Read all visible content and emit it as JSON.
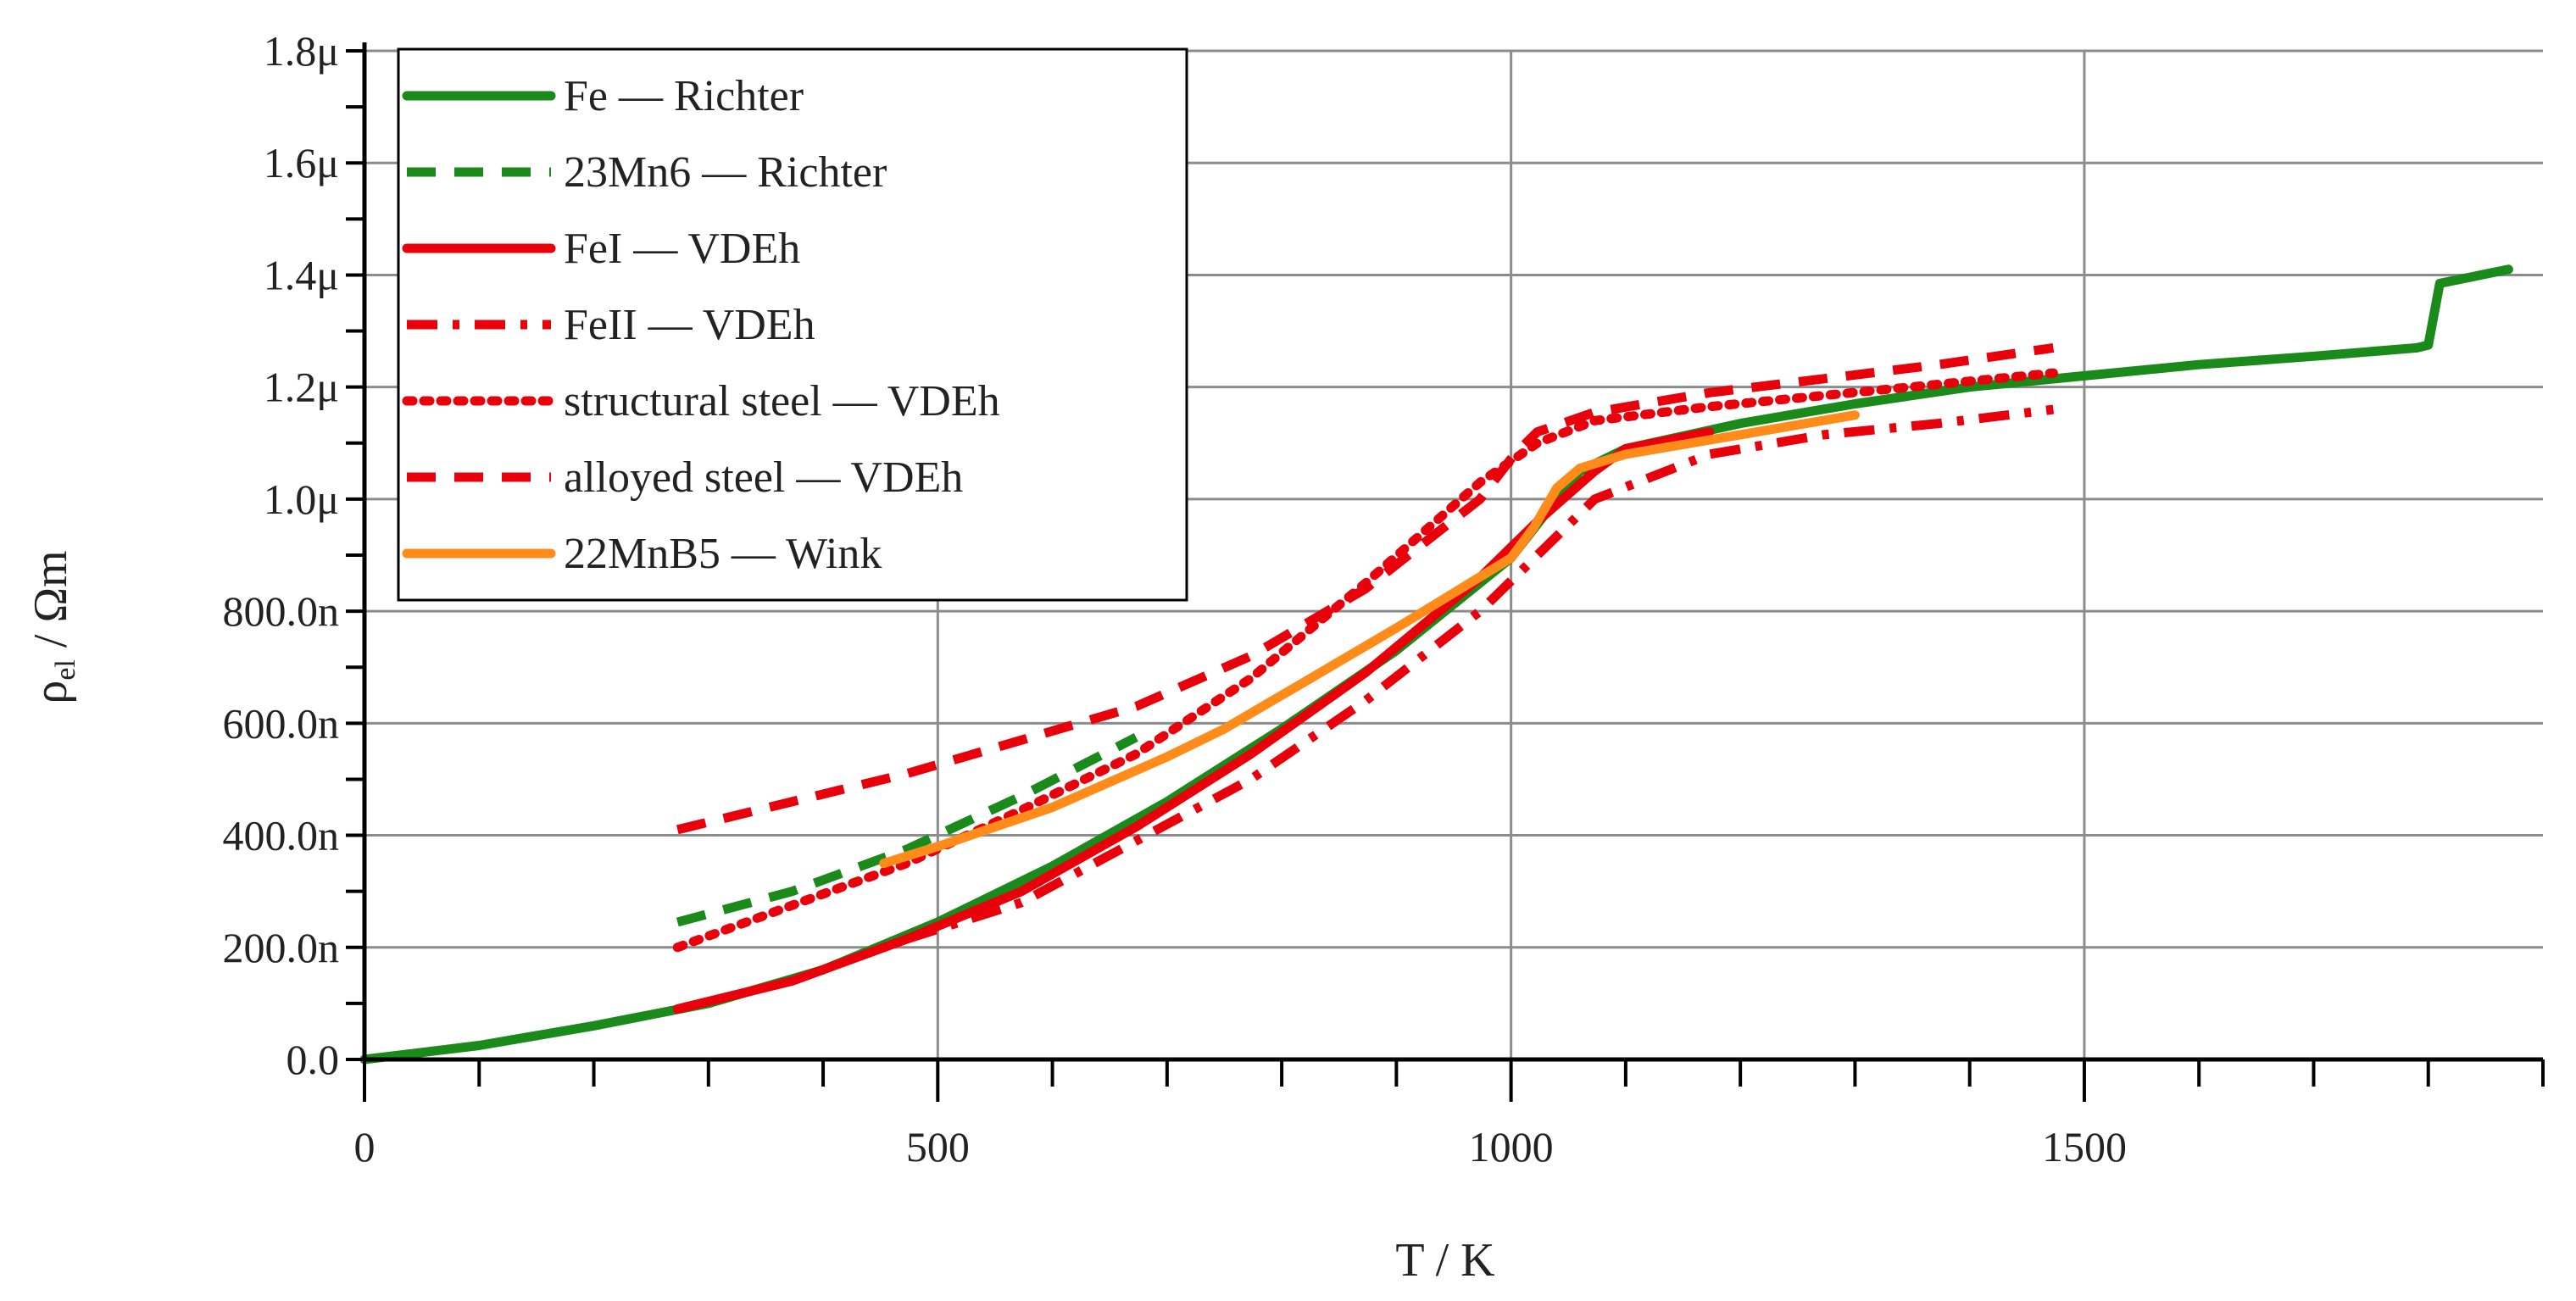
{
  "chart_data": {
    "type": "line",
    "title": "",
    "xlabel": "T / K",
    "ylabel_main": "ρ",
    "ylabel_sub": "el",
    "ylabel_unit": " / Ωm",
    "xlim": [
      0,
      1900
    ],
    "ylim": [
      0,
      1.8
    ],
    "x_ticks": [
      {
        "value": 0,
        "label": "0"
      },
      {
        "value": 500,
        "label": "500"
      },
      {
        "value": 1000,
        "label": "1000"
      },
      {
        "value": 1500,
        "label": "1500"
      }
    ],
    "y_ticks": [
      {
        "value": 0.0,
        "label": "0.0"
      },
      {
        "value": 0.2,
        "label": "200.0n"
      },
      {
        "value": 0.4,
        "label": "400.0n"
      },
      {
        "value": 0.6,
        "label": "600.0n"
      },
      {
        "value": 0.8,
        "label": "800.0n"
      },
      {
        "value": 1.0,
        "label": "1.0μ"
      },
      {
        "value": 1.2,
        "label": "1.2μ"
      },
      {
        "value": 1.4,
        "label": "1.4μ"
      },
      {
        "value": 1.6,
        "label": "1.6μ"
      },
      {
        "value": 1.8,
        "label": "1.8μ"
      }
    ],
    "y_units": "μΩm",
    "grid": true,
    "legend_position": "top-left",
    "series": [
      {
        "name": "Fe — Richter",
        "color": "#1a8a1a",
        "dash": "solid",
        "x": [
          0,
          100,
          200,
          300,
          400,
          500,
          600,
          700,
          800,
          900,
          1000,
          1040,
          1060,
          1100,
          1200,
          1300,
          1400,
          1500,
          1600,
          1700,
          1790,
          1800,
          1810,
          1870
        ],
        "y": [
          0.0,
          0.025,
          0.06,
          0.1,
          0.16,
          0.245,
          0.345,
          0.46,
          0.59,
          0.73,
          0.895,
          1.0,
          1.05,
          1.09,
          1.135,
          1.17,
          1.2,
          1.22,
          1.24,
          1.255,
          1.27,
          1.275,
          1.385,
          1.41
        ]
      },
      {
        "name": "23Mn6 — Richter",
        "color": "#1a8a1a",
        "dash": "dash",
        "x": [
          273,
          373,
          473,
          573,
          673
        ],
        "y": [
          0.245,
          0.3,
          0.375,
          0.47,
          0.575
        ]
      },
      {
        "name": "FeI — VDEh",
        "color": "#e8000b",
        "dash": "solid",
        "x": [
          273,
          373,
          473,
          573,
          673,
          773,
          873,
          973,
          1023,
          1073,
          1100,
          1173
        ],
        "y": [
          0.09,
          0.14,
          0.215,
          0.3,
          0.415,
          0.545,
          0.69,
          0.86,
          0.96,
          1.05,
          1.09,
          1.12
        ]
      },
      {
        "name": "FeII — VDEh",
        "color": "#e8000b",
        "dash": "dashdot",
        "x": [
          473,
          573,
          673,
          773,
          873,
          973,
          1073,
          1173,
          1273,
          1373,
          1473
        ],
        "y": [
          0.215,
          0.28,
          0.39,
          0.5,
          0.64,
          0.8,
          1.0,
          1.08,
          1.115,
          1.135,
          1.16
        ]
      },
      {
        "name": "structural steel — VDEh",
        "color": "#e8000b",
        "dash": "dot",
        "x": [
          273,
          373,
          473,
          573,
          673,
          773,
          873,
          973,
          1023,
          1073,
          1173,
          1273,
          1373,
          1473
        ],
        "y": [
          0.2,
          0.275,
          0.35,
          0.445,
          0.545,
          0.68,
          0.85,
          1.03,
          1.1,
          1.14,
          1.165,
          1.185,
          1.205,
          1.225
        ]
      },
      {
        "name": "alloyed steel — VDEh",
        "color": "#e8000b",
        "dash": "dash",
        "x": [
          273,
          373,
          473,
          573,
          673,
          773,
          873,
          973,
          1003,
          1023,
          1073,
          1173,
          1273,
          1373,
          1473
        ],
        "y": [
          0.41,
          0.46,
          0.51,
          0.57,
          0.63,
          0.72,
          0.84,
          1.0,
          1.08,
          1.12,
          1.155,
          1.19,
          1.215,
          1.24,
          1.27
        ]
      },
      {
        "name": "22MnB5 — Wink",
        "color": "#ff8c1a",
        "dash": "solid",
        "x": [
          453,
          500,
          600,
          700,
          750,
          800,
          900,
          1000,
          1020,
          1040,
          1060,
          1100,
          1200,
          1300
        ],
        "y": [
          0.35,
          0.38,
          0.45,
          0.54,
          0.59,
          0.65,
          0.77,
          0.895,
          0.95,
          1.02,
          1.055,
          1.08,
          1.115,
          1.15
        ]
      }
    ]
  }
}
